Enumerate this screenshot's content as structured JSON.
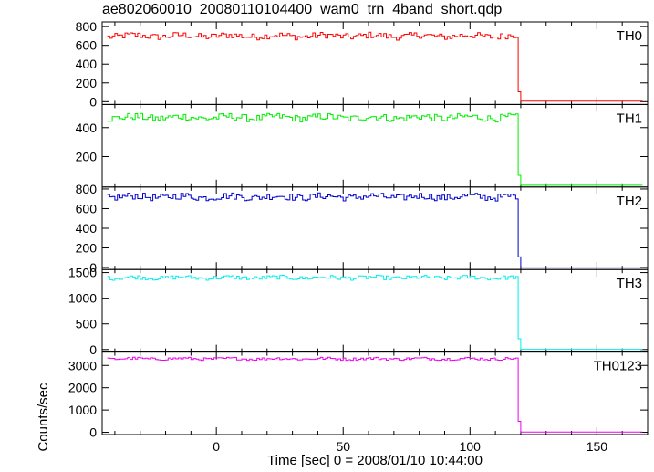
{
  "chart_data": {
    "type": "line",
    "title": "ae802060010_20080110104400_wam0_trn_4band_short.qdp",
    "ylabel": "Counts/sec",
    "xlabel": "Time [sec] 0 = 2008/01/10 10:44:00",
    "xlim": [
      -45,
      170
    ],
    "x_ticks": [
      0,
      50,
      100,
      150
    ],
    "drop_time": 119,
    "series": [
      {
        "name": "TH0",
        "color": "#ff0000",
        "level": 700,
        "noise": 35,
        "after": 5,
        "ylim": [
          -30,
          850
        ],
        "ticks": [
          0,
          200,
          400,
          600,
          800
        ]
      },
      {
        "name": "TH1",
        "color": "#00ee00",
        "level": 470,
        "noise": 25,
        "after": 2,
        "ylim": [
          -10,
          560
        ],
        "ticks": [
          200,
          400
        ]
      },
      {
        "name": "TH2",
        "color": "#0000cc",
        "level": 720,
        "noise": 35,
        "after": 4,
        "ylim": [
          -20,
          820
        ],
        "ticks": [
          0,
          200,
          400,
          600,
          800
        ]
      },
      {
        "name": "TH3",
        "color": "#00eeee",
        "level": 1400,
        "noise": 40,
        "after": 4,
        "ylim": [
          -50,
          1560
        ],
        "ticks": [
          0,
          500,
          1000,
          1500
        ]
      },
      {
        "name": "TH0123",
        "color": "#ee00ee",
        "level": 3300,
        "noise": 60,
        "after": 10,
        "ylim": [
          -100,
          3600
        ],
        "ticks": [
          0,
          1000,
          2000,
          3000
        ]
      }
    ]
  }
}
